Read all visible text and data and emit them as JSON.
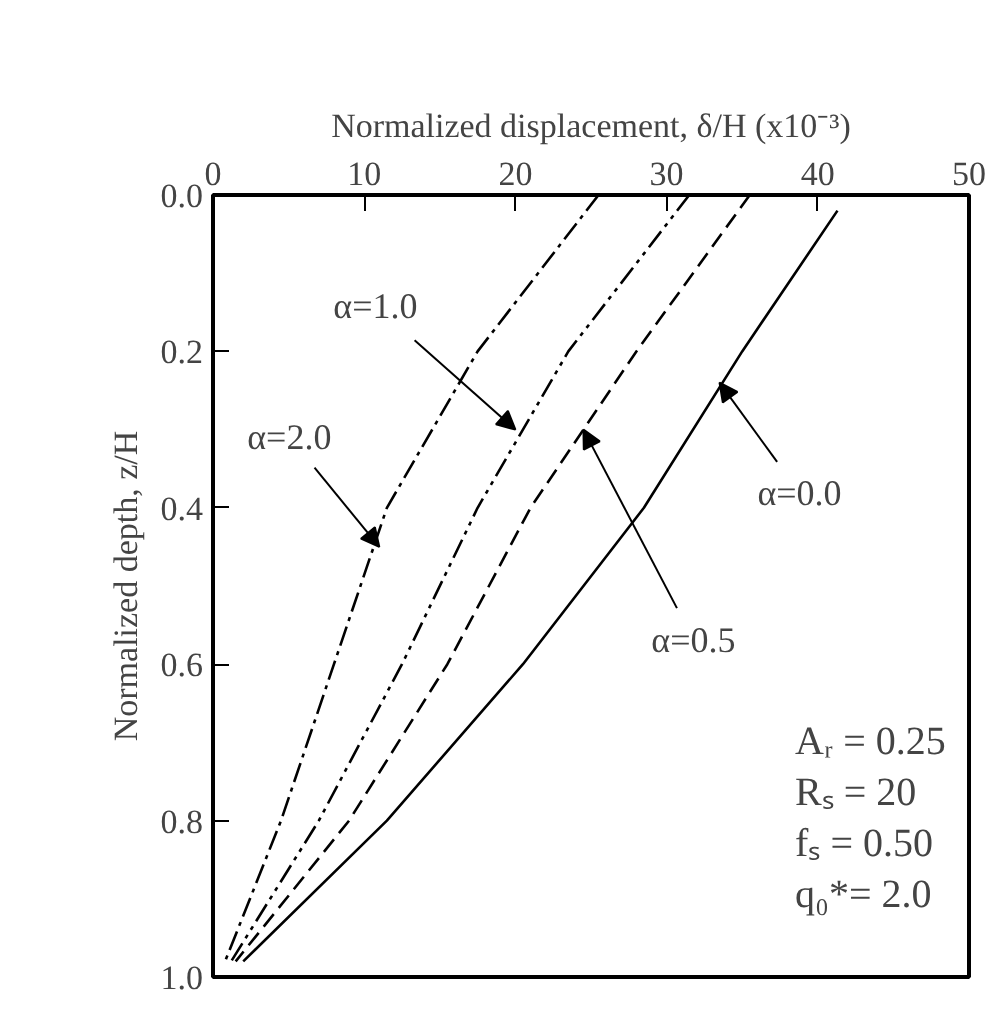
{
  "chart_data": {
    "type": "line",
    "xlabel": "Normalized displacement, δ/H (x10⁻³)",
    "ylabel": "Normalized depth, z/H",
    "xlim": [
      0,
      50
    ],
    "xticks": [
      0,
      10,
      20,
      30,
      40,
      50
    ],
    "ylim": [
      1.0,
      0.0
    ],
    "yticks": [
      {
        "value": 0,
        "label": "0.0"
      },
      {
        "value": 0.2,
        "label": "0.2"
      },
      {
        "value": 0.4,
        "label": "0.4"
      },
      {
        "value": 0.6,
        "label": "0.6"
      },
      {
        "value": 0.8,
        "label": "0.8"
      },
      {
        "value": 1.0,
        "label": "1.0"
      }
    ],
    "grid": false,
    "marker": "none",
    "series": [
      {
        "color": "#000000",
        "line_style": "solid",
        "x": [
          41.3,
          35,
          28.5,
          20.5,
          11.5,
          2
        ],
        "values": [
          0.02,
          0.2,
          0.4,
          0.6,
          0.8,
          0.98
        ]
      },
      {
        "color": "#000000",
        "line_style": "dashed",
        "x": [
          35.5,
          28,
          21,
          15.5,
          9,
          1.5
        ],
        "values": [
          0,
          0.2,
          0.4,
          0.6,
          0.8,
          0.98
        ]
      },
      {
        "color": "#000000",
        "line_style": "dashdotdot",
        "x": [
          31.5,
          23.5,
          17.5,
          12.5,
          7,
          1.2
        ],
        "values": [
          0,
          0.2,
          0.4,
          0.6,
          0.8,
          0.98
        ]
      },
      {
        "color": "#000000",
        "line_style": "dashdot",
        "x": [
          25.5,
          17.5,
          11.5,
          8,
          4.5,
          0.8
        ],
        "values": [
          0,
          0.2,
          0.4,
          0.6,
          0.8,
          0.98
        ]
      }
    ],
    "annotations": [
      {
        "text": "α=1.0",
        "x": 20,
        "y": 0.3
      },
      {
        "text": "α=2.0",
        "x": 11,
        "y": 0.45
      },
      {
        "text": "α=0.0",
        "x": 33.5,
        "y": 0.24
      },
      {
        "text": "α=0.5",
        "x": 24.5,
        "y": 0.3
      },
      "Aᵣ = 0.25",
      "Rₛ = 20",
      "fₛ = 0.50",
      "q₀*= 2.0"
    ]
  }
}
